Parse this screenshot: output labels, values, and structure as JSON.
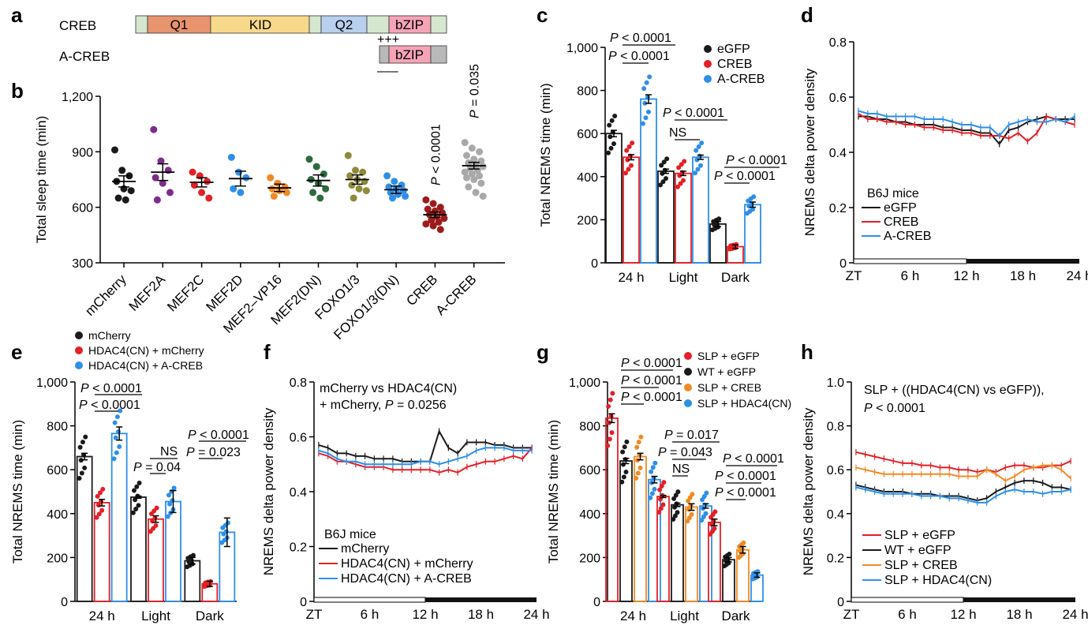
{
  "panel_labels": [
    "a",
    "b",
    "c",
    "d",
    "e",
    "f",
    "g",
    "h"
  ],
  "colors": {
    "black": "#1a1a1a",
    "red": "#e41f26",
    "blue": "#2e8fe8",
    "orange": "#f08a24",
    "grey": "#a9a9a9",
    "dark_red": "#9e1b1b",
    "purple": "#7d2c8c",
    "q1": "#e7946f",
    "kid": "#f8d98b",
    "q2": "#b8cfee",
    "bzip": "#f5a4b6",
    "linker": "#d5e7cf"
  },
  "panel_a": {
    "creb_label": "CREB",
    "acreb_label": "A-CREB",
    "domains": [
      "Q1",
      "KID",
      "Q2",
      "bZIP"
    ],
    "acreb_domain": "bZIP",
    "plus_marks": "+++",
    "minus_marks": "–––"
  },
  "chart_data": [
    {
      "panel": "b",
      "type": "scatter",
      "title": "",
      "ylabel": "Total sleep time (min)",
      "ylim": [
        300,
        1200
      ],
      "yticks": [
        300,
        600,
        900,
        "1,200"
      ],
      "categories": [
        "mCherry",
        "MEF2A",
        "MEF2C",
        "MEF2D",
        "MEF2–VP16",
        "MEF2(DN)",
        "FOXO1/3",
        "FOXO1/3(DN)",
        "CREB",
        "A-CREB"
      ],
      "colors": [
        "#1a1a1a",
        "#7d2c8c",
        "#e41f26",
        "#2e8fe8",
        "#f08a24",
        "#2d6a3e",
        "#8f8a3a",
        "#2e8fe8",
        "#9e1b1b",
        "#a9a9a9"
      ],
      "means": [
        740,
        790,
        735,
        755,
        705,
        745,
        750,
        695,
        560,
        825
      ],
      "sems": [
        30,
        45,
        25,
        40,
        20,
        30,
        25,
        20,
        15,
        18
      ],
      "points": [
        [
          910,
          800,
          770,
          740,
          700,
          690,
          650,
          640
        ],
        [
          1020,
          850,
          800,
          760,
          730,
          680,
          640
        ],
        [
          790,
          770,
          740,
          720,
          680,
          650
        ],
        [
          870,
          790,
          760,
          700,
          680
        ],
        [
          760,
          730,
          710,
          700,
          690,
          680,
          660
        ],
        [
          860,
          820,
          780,
          750,
          730,
          700,
          680,
          650
        ],
        [
          880,
          800,
          790,
          770,
          750,
          740,
          720,
          700,
          690,
          650
        ],
        [
          770,
          740,
          720,
          710,
          700,
          690,
          680,
          670,
          660,
          650
        ],
        [
          640,
          620,
          600,
          590,
          580,
          570,
          560,
          550,
          540,
          530,
          520,
          510,
          500,
          480
        ],
        [
          950,
          920,
          900,
          880,
          860,
          850,
          840,
          830,
          820,
          810,
          800,
          790,
          780,
          770,
          760,
          750,
          730,
          710,
          680,
          660
        ]
      ],
      "annotations": [
        "P < 0.0001",
        "P = 0.035"
      ]
    },
    {
      "panel": "c",
      "type": "bar",
      "ylabel": "Total NREMS time (min)",
      "ylim": [
        0,
        1000
      ],
      "yticks": [
        0,
        200,
        400,
        600,
        800,
        "1,000"
      ],
      "categories": [
        "24 h",
        "Light",
        "Dark"
      ],
      "series": [
        {
          "name": "eGFP",
          "color": "#1a1a1a",
          "values": [
            600,
            425,
            180
          ],
          "sems": [
            15,
            10,
            12
          ]
        },
        {
          "name": "CREB",
          "color": "#e41f26",
          "values": [
            490,
            415,
            75
          ],
          "sems": [
            12,
            10,
            8
          ]
        },
        {
          "name": "A-CREB",
          "color": "#2e8fe8",
          "values": [
            760,
            490,
            270
          ],
          "sems": [
            20,
            10,
            12
          ]
        }
      ],
      "annotations": [
        "P < 0.0001",
        "P < 0.0001",
        "P < 0.0001",
        "NS",
        "P < 0.0001",
        "P < 0.0001"
      ]
    },
    {
      "panel": "d",
      "type": "line",
      "ylabel": "NREMS delta power density",
      "ylim": [
        0,
        0.8
      ],
      "yticks": [
        "0",
        "0.2",
        "0.4",
        "0.6",
        "0.8"
      ],
      "xticks": [
        "ZT",
        "6 h",
        "12 h",
        "18 h",
        "24 h"
      ],
      "legend_title": "B6J mice",
      "series": [
        {
          "name": "eGFP",
          "color": "#1a1a1a",
          "values": [
            0.53,
            0.53,
            0.52,
            0.52,
            0.51,
            0.51,
            0.5,
            0.5,
            0.5,
            0.49,
            0.49,
            0.48,
            0.48,
            0.47,
            0.47,
            0.43,
            0.48,
            0.49,
            0.51,
            0.52,
            0.53,
            0.52,
            0.52,
            0.52
          ]
        },
        {
          "name": "CREB",
          "color": "#e41f26",
          "values": [
            0.54,
            0.52,
            0.52,
            0.51,
            0.51,
            0.5,
            0.5,
            0.49,
            0.49,
            0.48,
            0.48,
            0.47,
            0.47,
            0.46,
            0.46,
            0.46,
            0.45,
            0.47,
            0.44,
            0.47,
            0.53,
            0.52,
            0.51,
            0.5
          ]
        },
        {
          "name": "A-CREB",
          "color": "#2e8fe8",
          "values": [
            0.55,
            0.54,
            0.54,
            0.53,
            0.53,
            0.53,
            0.53,
            0.52,
            0.52,
            0.52,
            0.51,
            0.5,
            0.5,
            0.49,
            0.49,
            0.46,
            0.5,
            0.51,
            0.52,
            0.51,
            0.51,
            0.52,
            0.51,
            0.53
          ]
        }
      ]
    },
    {
      "panel": "e",
      "type": "bar",
      "ylabel": "Total NREMS time (min)",
      "ylim": [
        0,
        1000
      ],
      "yticks": [
        0,
        200,
        400,
        600,
        800,
        "1,000"
      ],
      "categories": [
        "24 h",
        "Light",
        "Dark"
      ],
      "series": [
        {
          "name": "mCherry",
          "color": "#1a1a1a",
          "values": [
            660,
            475,
            185
          ],
          "sems": [
            15,
            5,
            15
          ]
        },
        {
          "name": "HDAC4(CN) + mCherry",
          "color": "#e41f26",
          "values": [
            450,
            375,
            80
          ],
          "sems": [
            15,
            15,
            12
          ]
        },
        {
          "name": "HDAC4(CN) + A-CREB",
          "color": "#2e8fe8",
          "values": [
            765,
            455,
            315
          ],
          "sems": [
            30,
            50,
            65
          ]
        }
      ],
      "annotations": [
        "P < 0.0001",
        "P < 0.0001",
        "P = 0.04",
        "NS",
        "P < 0.0001",
        "P = 0.023"
      ]
    },
    {
      "panel": "f",
      "type": "line",
      "ylabel": "NREMS delta power density",
      "ylim": [
        0,
        0.8
      ],
      "yticks": [
        "0",
        "0.2",
        "0.4",
        "0.6",
        "0.8"
      ],
      "xticks": [
        "ZT",
        "6 h",
        "12 h",
        "18 h",
        "24 h"
      ],
      "title": "mCherry vs HDAC4(CN)",
      "title2": "+ mCherry, P = 0.0256",
      "legend_title": "B6J mice",
      "series": [
        {
          "name": "mCherry",
          "color": "#1a1a1a",
          "values": [
            0.57,
            0.56,
            0.54,
            0.54,
            0.53,
            0.53,
            0.52,
            0.52,
            0.52,
            0.51,
            0.51,
            0.51,
            0.51,
            0.62,
            0.56,
            0.54,
            0.58,
            0.58,
            0.58,
            0.57,
            0.57,
            0.56,
            0.56,
            0.56
          ]
        },
        {
          "name": "HDAC4(CN) + mCherry",
          "color": "#e41f26",
          "values": [
            0.54,
            0.53,
            0.51,
            0.51,
            0.5,
            0.49,
            0.49,
            0.49,
            0.48,
            0.48,
            0.48,
            0.48,
            0.48,
            0.47,
            0.48,
            0.47,
            0.49,
            0.5,
            0.51,
            0.51,
            0.52,
            0.53,
            0.52,
            0.56
          ]
        },
        {
          "name": "HDAC4(CN) + A-CREB",
          "color": "#2e8fe8",
          "values": [
            0.55,
            0.54,
            0.52,
            0.51,
            0.51,
            0.5,
            0.5,
            0.5,
            0.5,
            0.5,
            0.5,
            0.51,
            0.51,
            0.5,
            0.51,
            0.52,
            0.53,
            0.55,
            0.56,
            0.56,
            0.56,
            0.55,
            0.55,
            0.55
          ]
        }
      ]
    },
    {
      "panel": "g",
      "type": "bar",
      "ylabel": "Total NREMS time (min)",
      "ylim": [
        0,
        1000
      ],
      "yticks": [
        0,
        200,
        400,
        600,
        800,
        "1,000"
      ],
      "categories": [
        "24 h",
        "Light",
        "Dark"
      ],
      "series": [
        {
          "name": "SLP + eGFP",
          "color": "#e41f26",
          "values": [
            835,
            478,
            360
          ],
          "sems": [
            20,
            5,
            15
          ]
        },
        {
          "name": "WT + eGFP",
          "color": "#1a1a1a",
          "values": [
            640,
            440,
            190
          ],
          "sems": [
            12,
            8,
            10
          ]
        },
        {
          "name": "SLP + CREB",
          "color": "#f08a24",
          "values": [
            660,
            430,
            235
          ],
          "sems": [
            15,
            15,
            15
          ]
        },
        {
          "name": "SLP + HDAC4(CN)",
          "color": "#2e8fe8",
          "values": [
            555,
            435,
            120
          ],
          "sems": [
            15,
            10,
            10
          ]
        }
      ],
      "annotations": [
        "P < 0.0001",
        "P < 0.0001",
        "P < 0.0001",
        "P = 0.017",
        "P = 0.043",
        "NS",
        "P < 0.0001",
        "P < 0.0001",
        "P < 0.0001"
      ]
    },
    {
      "panel": "h",
      "type": "line",
      "ylabel": "NREMS delta power density",
      "ylim": [
        0,
        1.0
      ],
      "yticks": [
        "0",
        "0.2",
        "0.4",
        "0.6",
        "0.8",
        "1.0"
      ],
      "xticks": [
        "ZT",
        "6 h",
        "12 h",
        "18 h",
        "24 h"
      ],
      "title": "SLP + ((HDAC4(CN) vs eGFP)),",
      "title2": "P < 0.0001",
      "series": [
        {
          "name": "SLP + eGFP",
          "color": "#e41f26",
          "values": [
            0.68,
            0.67,
            0.66,
            0.65,
            0.64,
            0.63,
            0.63,
            0.62,
            0.62,
            0.61,
            0.61,
            0.6,
            0.6,
            0.59,
            0.6,
            0.59,
            0.61,
            0.62,
            0.62,
            0.61,
            0.61,
            0.62,
            0.62,
            0.64
          ]
        },
        {
          "name": "WT + eGFP",
          "color": "#1a1a1a",
          "values": [
            0.53,
            0.52,
            0.51,
            0.5,
            0.5,
            0.5,
            0.49,
            0.49,
            0.49,
            0.48,
            0.48,
            0.48,
            0.47,
            0.46,
            0.47,
            0.5,
            0.52,
            0.54,
            0.55,
            0.55,
            0.54,
            0.52,
            0.52,
            0.51
          ]
        },
        {
          "name": "SLP + CREB",
          "color": "#f08a24",
          "values": [
            0.61,
            0.6,
            0.59,
            0.58,
            0.58,
            0.58,
            0.58,
            0.58,
            0.58,
            0.58,
            0.58,
            0.57,
            0.57,
            0.57,
            0.6,
            0.58,
            0.55,
            0.57,
            0.6,
            0.61,
            0.62,
            0.62,
            0.6,
            0.56
          ]
        },
        {
          "name": "SLP + HDAC4(CN)",
          "color": "#2e8fe8",
          "values": [
            0.52,
            0.51,
            0.5,
            0.49,
            0.49,
            0.49,
            0.49,
            0.48,
            0.48,
            0.48,
            0.47,
            0.47,
            0.46,
            0.45,
            0.45,
            0.48,
            0.5,
            0.51,
            0.5,
            0.5,
            0.49,
            0.5,
            0.5,
            0.51
          ]
        }
      ]
    }
  ]
}
